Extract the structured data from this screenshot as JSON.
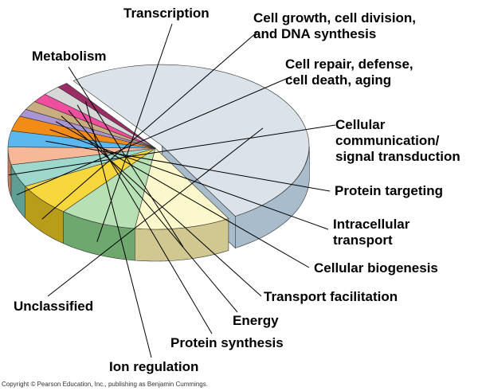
{
  "chart_data": {
    "type": "pie",
    "style": "3d-exploded",
    "title": "",
    "categories": [
      {
        "name": "Transcription",
        "value": 8.5,
        "color": "#b7e0b4",
        "side": "#6fa86e"
      },
      {
        "name": "Cell growth, cell division, and DNA synthesis",
        "label_lines": [
          "Cell growth, cell division,",
          "and DNA synthesis"
        ],
        "value": 6.5,
        "color": "#f7d73b",
        "side": "#b89d1a"
      },
      {
        "name": "Cell repair, defense, cell death, aging",
        "label_lines": [
          "Cell repair, defense,",
          "cell death, aging"
        ],
        "value": 4.5,
        "color": "#9ed7cc",
        "side": "#5f9e94"
      },
      {
        "name": "Cellular communication/ signal transduction",
        "label_lines": [
          "Cellular",
          "communication/",
          "signal transduction"
        ],
        "value": 3.5,
        "color": "#f6b896",
        "side": "#c17e5e"
      },
      {
        "name": "Protein targeting",
        "value": 3.2,
        "color": "#5bb8ee",
        "side": "#2a86bd"
      },
      {
        "name": "Intracellular transport",
        "label_lines": [
          "Intracellular",
          "transport"
        ],
        "value": 3.0,
        "color": "#f28c17",
        "side": "#b35f00"
      },
      {
        "name": "Cellular biogenesis",
        "value": 1.5,
        "color": "#a995d4",
        "side": "#6e5a9e"
      },
      {
        "name": "Transport facilitation",
        "value": 1.8,
        "color": "#c9ad80",
        "side": "#8f7448"
      },
      {
        "name": "Energy",
        "value": 1.8,
        "color": "#ef4d9e",
        "side": "#c3096b"
      },
      {
        "name": "Protein synthesis",
        "value": 2.0,
        "color": "#d7d7d7",
        "side": "#9a9a9a"
      },
      {
        "name": "Ion regulation",
        "value": 1.2,
        "color": "#9b2d66",
        "side": "#6b0f3f"
      },
      {
        "name": "Unclassified",
        "value": 52.0,
        "color": "#dbe2ea",
        "side": "#a9bccb"
      },
      {
        "name": "Metabolism",
        "value": 10.5,
        "color": "#fdf8cc",
        "side": "#d0c890"
      }
    ],
    "legend": "callout labels around the pie"
  },
  "copyright": "Copyright © Pearson Education, Inc., publishing as Benjamin Cummings."
}
